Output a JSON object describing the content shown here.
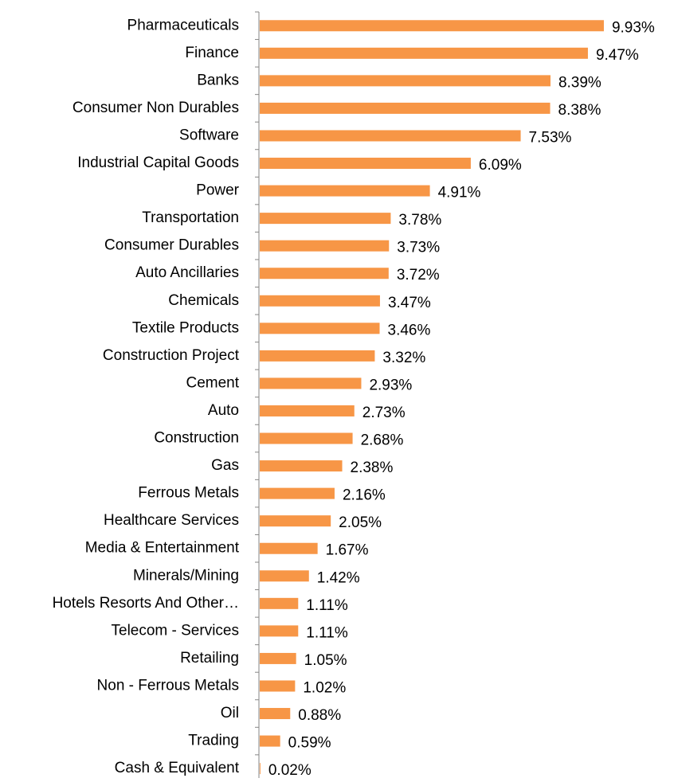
{
  "chart_data": {
    "type": "bar",
    "orientation": "horizontal",
    "color": "#f79646",
    "categories": [
      "Pharmaceuticals",
      "Finance",
      "Banks",
      "Consumer Non Durables",
      "Software",
      "Industrial Capital Goods",
      "Power",
      "Transportation",
      "Consumer Durables",
      "Auto Ancillaries",
      "Chemicals",
      "Textile Products",
      "Construction Project",
      "Cement",
      "Auto",
      "Construction",
      "Gas",
      "Ferrous Metals",
      "Healthcare Services",
      "Media & Entertainment",
      "Minerals/Mining",
      "Hotels Resorts And Other…",
      "Telecom - Services",
      "Retailing",
      "Non - Ferrous Metals",
      "Oil",
      "Trading",
      "Cash & Equivalent"
    ],
    "values": [
      9.93,
      9.47,
      8.39,
      8.38,
      7.53,
      6.09,
      4.91,
      3.78,
      3.73,
      3.72,
      3.47,
      3.46,
      3.32,
      2.93,
      2.73,
      2.68,
      2.38,
      2.16,
      2.05,
      1.67,
      1.42,
      1.11,
      1.11,
      1.05,
      1.02,
      0.88,
      0.59,
      0.02
    ],
    "value_labels": [
      "9.93%",
      "9.47%",
      "8.39%",
      "8.38%",
      "7.53%",
      "6.09%",
      "4.91%",
      "3.78%",
      "3.73%",
      "3.72%",
      "3.47%",
      "3.46%",
      "3.32%",
      "2.93%",
      "2.73%",
      "2.68%",
      "2.38%",
      "2.16%",
      "2.05%",
      "1.67%",
      "1.42%",
      "1.11%",
      "1.11%",
      "1.05%",
      "1.02%",
      "0.88%",
      "0.59%",
      "0.02%"
    ]
  }
}
